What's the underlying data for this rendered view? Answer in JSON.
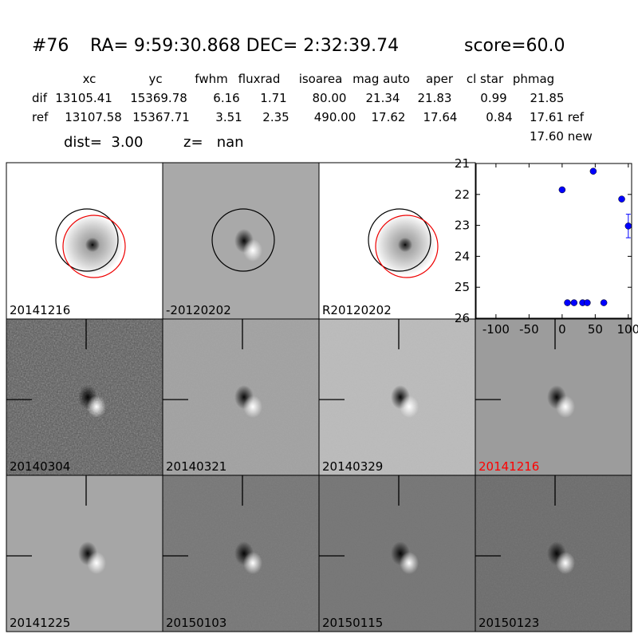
{
  "header": {
    "id": "#76",
    "coords": "RA= 9:59:30.868 DEC= 2:32:39.74",
    "score": "score=60.0"
  },
  "table": {
    "columns": [
      "xc",
      "yc",
      "fwhm",
      "fluxrad",
      "isoarea",
      "mag auto",
      "aper",
      "cl star",
      "phmag"
    ],
    "rows": [
      [
        "dif",
        "13105.41",
        "15369.78",
        "6.16",
        "1.71",
        "80.00",
        "21.34",
        "21.83",
        "0.99",
        "21.85"
      ],
      [
        "ref",
        "13107.58",
        "15367.71",
        "3.51",
        "2.35",
        "490.00",
        "17.62",
        "17.64",
        "0.84",
        "17.61 ref"
      ]
    ],
    "extra": "17.60 new",
    "dist": "dist=  3.00",
    "z": "z=   nan"
  },
  "panels": [
    {
      "label": "20141216",
      "color": "#000000"
    },
    {
      "label": "-20120202",
      "color": "#000000"
    },
    {
      "label": "R20120202",
      "color": "#000000"
    },
    {
      "label": "20140304",
      "color": "#000000"
    },
    {
      "label": "20140321",
      "color": "#000000"
    },
    {
      "label": "20140329",
      "color": "#000000"
    },
    {
      "label": "20141216",
      "color": "#ff0000"
    },
    {
      "label": "20141225",
      "color": "#000000"
    },
    {
      "label": "20150103",
      "color": "#000000"
    },
    {
      "label": "20150115",
      "color": "#000000"
    },
    {
      "label": "20150123",
      "color": "#000000"
    }
  ],
  "chart_data": {
    "type": "scatter",
    "x": [
      0,
      8,
      18,
      31,
      38,
      47,
      63,
      90,
      100
    ],
    "values": [
      21.85,
      25.5,
      25.5,
      25.5,
      25.5,
      21.25,
      25.5,
      22.15,
      23.02
    ],
    "errors": [
      null,
      null,
      null,
      null,
      null,
      null,
      null,
      null,
      0.38
    ],
    "color": "#0000ff",
    "xlim": [
      -130,
      105
    ],
    "ylim": [
      26,
      21
    ],
    "xticks": [
      -100,
      -50,
      0,
      50,
      100
    ],
    "yticks": [
      21,
      22,
      23,
      24,
      25,
      26
    ]
  }
}
